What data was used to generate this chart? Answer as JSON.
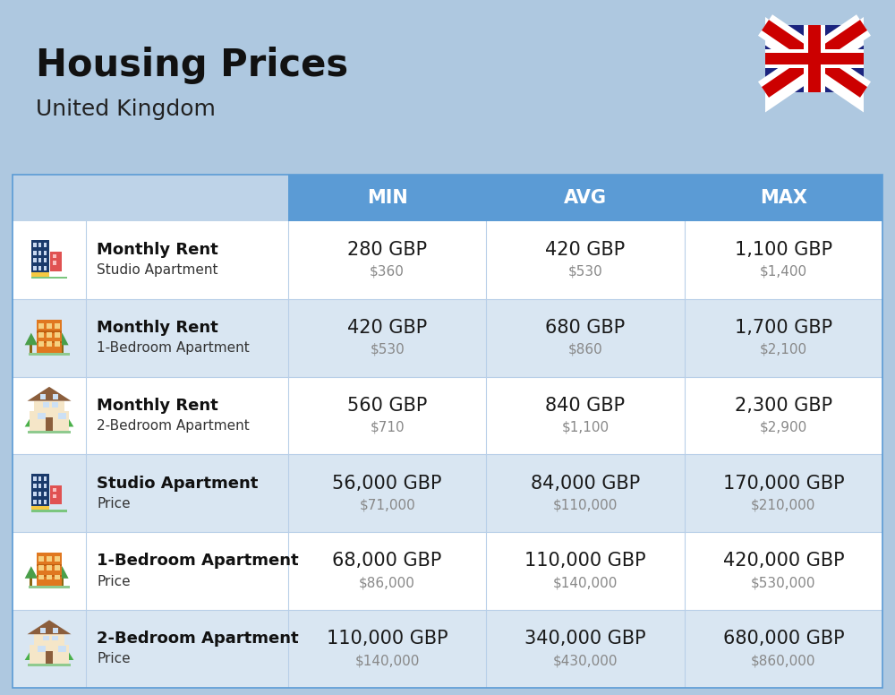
{
  "title": "Housing Prices",
  "subtitle": "United Kingdom",
  "background_color": "#aec8e0",
  "header_color": "#5b9bd5",
  "row_color_even": "#ffffff",
  "row_color_odd": "#d9e6f2",
  "header_text_color": "#ffffff",
  "columns": [
    "MIN",
    "AVG",
    "MAX"
  ],
  "rows": [
    {
      "icon_type": "tall_blue",
      "bold_text": "Monthly Rent",
      "sub_text": "Studio Apartment",
      "min_gbp": "280 GBP",
      "min_usd": "$360",
      "avg_gbp": "420 GBP",
      "avg_usd": "$530",
      "max_gbp": "1,100 GBP",
      "max_usd": "$1,400"
    },
    {
      "icon_type": "mid_orange",
      "bold_text": "Monthly Rent",
      "sub_text": "1-Bedroom Apartment",
      "min_gbp": "420 GBP",
      "min_usd": "$530",
      "avg_gbp": "680 GBP",
      "avg_usd": "$860",
      "max_gbp": "1,700 GBP",
      "max_usd": "$2,100"
    },
    {
      "icon_type": "house_tan",
      "bold_text": "Monthly Rent",
      "sub_text": "2-Bedroom Apartment",
      "min_gbp": "560 GBP",
      "min_usd": "$710",
      "avg_gbp": "840 GBP",
      "avg_usd": "$1,100",
      "max_gbp": "2,300 GBP",
      "max_usd": "$2,900"
    },
    {
      "icon_type": "tall_blue",
      "bold_text": "Studio Apartment",
      "sub_text": "Price",
      "min_gbp": "56,000 GBP",
      "min_usd": "$71,000",
      "avg_gbp": "84,000 GBP",
      "avg_usd": "$110,000",
      "max_gbp": "170,000 GBP",
      "max_usd": "$210,000"
    },
    {
      "icon_type": "mid_orange",
      "bold_text": "1-Bedroom Apartment",
      "sub_text": "Price",
      "min_gbp": "68,000 GBP",
      "min_usd": "$86,000",
      "avg_gbp": "110,000 GBP",
      "avg_usd": "$140,000",
      "max_gbp": "420,000 GBP",
      "max_usd": "$530,000"
    },
    {
      "icon_type": "house_tan",
      "bold_text": "2-Bedroom Apartment",
      "sub_text": "Price",
      "min_gbp": "110,000 GBP",
      "min_usd": "$140,000",
      "avg_gbp": "340,000 GBP",
      "avg_usd": "$430,000",
      "max_gbp": "680,000 GBP",
      "max_usd": "$860,000"
    }
  ],
  "header_font_size": 15,
  "row_bold_font_size": 13,
  "sub_font_size": 11,
  "gbp_font_size": 15,
  "usd_font_size": 11,
  "title_fontsize": 30,
  "subtitle_fontsize": 18
}
